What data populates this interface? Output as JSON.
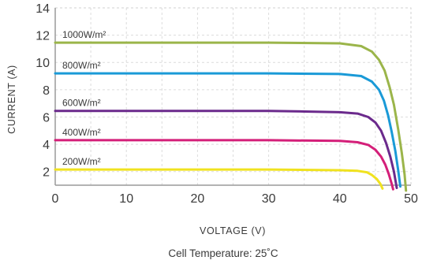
{
  "chart_data": {
    "type": "line",
    "xlabel": "VOLTAGE (V)",
    "ylabel": "CURRENT (A)",
    "caption": "Cell Temperature: 25˚C",
    "xlim": [
      0,
      50
    ],
    "ylim": [
      1,
      14
    ],
    "xticks": [
      0,
      10,
      20,
      30,
      40,
      50
    ],
    "yticks": [
      2,
      4,
      6,
      8,
      10,
      12,
      14
    ],
    "grid": true,
    "legend": "inline labels above curves",
    "series": [
      {
        "name": "1000W/m²",
        "color": "#9bb54a",
        "points": [
          [
            0,
            11.45
          ],
          [
            20,
            11.45
          ],
          [
            30,
            11.45
          ],
          [
            40,
            11.4
          ],
          [
            43,
            11.2
          ],
          [
            44.5,
            10.8
          ],
          [
            45.5,
            10.2
          ],
          [
            46.3,
            9.4
          ],
          [
            47,
            8.2
          ],
          [
            47.6,
            6.9
          ],
          [
            48.2,
            5.1
          ],
          [
            48.7,
            3.4
          ],
          [
            49.1,
            1.8
          ],
          [
            49.3,
            0.6
          ]
        ]
      },
      {
        "name": "800W/m²",
        "color": "#1a9ad7",
        "points": [
          [
            0,
            9.2
          ],
          [
            20,
            9.2
          ],
          [
            30,
            9.2
          ],
          [
            40,
            9.15
          ],
          [
            43,
            9.0
          ],
          [
            44.5,
            8.6
          ],
          [
            45.5,
            8.0
          ],
          [
            46.2,
            7.2
          ],
          [
            46.8,
            6.1
          ],
          [
            47.3,
            4.9
          ],
          [
            47.8,
            3.5
          ],
          [
            48.2,
            2.1
          ],
          [
            48.5,
            0.9
          ]
        ]
      },
      {
        "name": "600W/m²",
        "color": "#6b2a8c",
        "points": [
          [
            0,
            6.45
          ],
          [
            20,
            6.45
          ],
          [
            30,
            6.45
          ],
          [
            35,
            6.4
          ],
          [
            40,
            6.35
          ],
          [
            42.5,
            6.25
          ],
          [
            44,
            6.0
          ],
          [
            45,
            5.6
          ],
          [
            45.8,
            5.0
          ],
          [
            46.5,
            4.1
          ],
          [
            47.1,
            3.1
          ],
          [
            47.6,
            2.0
          ],
          [
            48,
            0.8
          ]
        ]
      },
      {
        "name": "400W/m²",
        "color": "#d41f79",
        "points": [
          [
            0,
            4.3
          ],
          [
            20,
            4.3
          ],
          [
            30,
            4.3
          ],
          [
            40,
            4.25
          ],
          [
            42.5,
            4.15
          ],
          [
            44,
            3.95
          ],
          [
            45,
            3.6
          ],
          [
            45.8,
            3.1
          ],
          [
            46.4,
            2.5
          ],
          [
            46.9,
            1.8
          ],
          [
            47.3,
            1.1
          ],
          [
            47.5,
            0.7
          ]
        ]
      },
      {
        "name": "200W/m²",
        "color": "#f0e21f",
        "points": [
          [
            0,
            2.15
          ],
          [
            20,
            2.15
          ],
          [
            30,
            2.15
          ],
          [
            40,
            2.1
          ],
          [
            42.5,
            2.05
          ],
          [
            43.8,
            1.95
          ],
          [
            44.5,
            1.75
          ],
          [
            45.2,
            1.45
          ],
          [
            45.7,
            1.1
          ],
          [
            46,
            0.75
          ]
        ]
      }
    ]
  }
}
